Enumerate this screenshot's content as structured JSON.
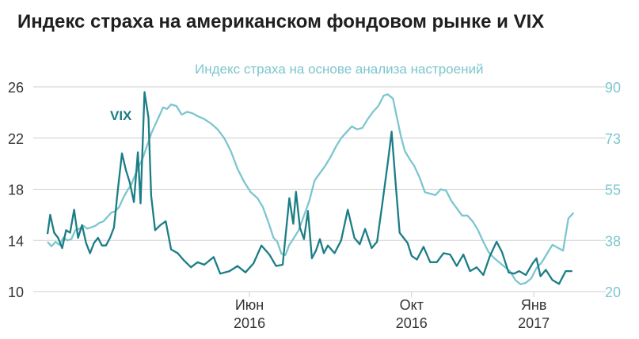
{
  "chart_data": {
    "type": "line",
    "title": "Индекс страха на американском фондовом рынке и VIX",
    "colors": {
      "vix": "#1b7d86",
      "sentiment": "#7cc6cf",
      "axis": "#cfcfcf",
      "text": "#333333"
    },
    "grid": true,
    "x_ticks": [
      {
        "line1": "Июн",
        "line2": "2016",
        "date": "2016-06-01"
      },
      {
        "line1": "Окт",
        "line2": "2016",
        "date": "2016-10-01"
      },
      {
        "line1": "Янв",
        "line2": "2017",
        "date": "2017-01-01"
      }
    ],
    "x_range": [
      "2016-01-01",
      "2017-02-14"
    ],
    "y_left": {
      "range": [
        10,
        26
      ],
      "ticks": [
        "10",
        "14",
        "18",
        "22",
        "26"
      ]
    },
    "y_right": {
      "range": [
        20,
        90
      ],
      "ticks": [
        "20",
        "38",
        "55",
        "73",
        "90"
      ]
    },
    "series": [
      {
        "name": "VIX",
        "axis": "left",
        "points": [
          [
            "2016-01-01",
            14.5
          ],
          [
            "2016-01-03",
            16.0
          ],
          [
            "2016-01-06",
            14.6
          ],
          [
            "2016-01-09",
            14.2
          ],
          [
            "2016-01-12",
            13.4
          ],
          [
            "2016-01-15",
            14.8
          ],
          [
            "2016-01-18",
            14.6
          ],
          [
            "2016-01-21",
            16.4
          ],
          [
            "2016-01-24",
            14.2
          ],
          [
            "2016-01-27",
            15.2
          ],
          [
            "2016-01-30",
            13.8
          ],
          [
            "2016-02-02",
            13.0
          ],
          [
            "2016-02-05",
            13.8
          ],
          [
            "2016-02-08",
            14.2
          ],
          [
            "2016-02-11",
            13.6
          ],
          [
            "2016-02-14",
            13.6
          ],
          [
            "2016-02-17",
            14.2
          ],
          [
            "2016-02-20",
            15.0
          ],
          [
            "2016-02-23",
            18.0
          ],
          [
            "2016-02-26",
            20.8
          ],
          [
            "2016-02-29",
            19.5
          ],
          [
            "2016-03-03",
            18.5
          ],
          [
            "2016-03-06",
            17.0
          ],
          [
            "2016-03-09",
            20.9
          ],
          [
            "2016-03-11",
            16.9
          ],
          [
            "2016-03-14",
            25.6
          ],
          [
            "2016-03-17",
            23.6
          ],
          [
            "2016-03-19",
            17.5
          ],
          [
            "2016-03-22",
            14.8
          ],
          [
            "2016-03-26",
            15.2
          ],
          [
            "2016-03-30",
            15.5
          ],
          [
            "2016-04-03",
            13.3
          ],
          [
            "2016-04-08",
            13.0
          ],
          [
            "2016-04-13",
            12.4
          ],
          [
            "2016-04-18",
            11.9
          ],
          [
            "2016-04-23",
            12.3
          ],
          [
            "2016-04-28",
            12.1
          ],
          [
            "2016-05-05",
            12.7
          ],
          [
            "2016-05-10",
            11.4
          ],
          [
            "2016-05-17",
            11.6
          ],
          [
            "2016-05-23",
            12.0
          ],
          [
            "2016-05-29",
            11.5
          ],
          [
            "2016-06-04",
            12.2
          ],
          [
            "2016-06-10",
            13.6
          ],
          [
            "2016-06-16",
            12.9
          ],
          [
            "2016-06-21",
            12.0
          ],
          [
            "2016-06-26",
            12.1
          ],
          [
            "2016-07-01",
            17.3
          ],
          [
            "2016-07-04",
            15.3
          ],
          [
            "2016-07-06",
            17.8
          ],
          [
            "2016-07-09",
            15.0
          ],
          [
            "2016-07-12",
            14.1
          ],
          [
            "2016-07-15",
            16.3
          ],
          [
            "2016-07-18",
            12.6
          ],
          [
            "2016-07-21",
            13.2
          ],
          [
            "2016-07-24",
            14.1
          ],
          [
            "2016-07-27",
            13.0
          ],
          [
            "2016-07-30",
            13.6
          ],
          [
            "2016-08-04",
            13.0
          ],
          [
            "2016-08-09",
            14.0
          ],
          [
            "2016-08-14",
            16.4
          ],
          [
            "2016-08-19",
            14.2
          ],
          [
            "2016-08-23",
            13.7
          ],
          [
            "2016-08-27",
            14.9
          ],
          [
            "2016-09-01",
            13.4
          ],
          [
            "2016-09-05",
            13.9
          ],
          [
            "2016-09-09",
            16.9
          ],
          [
            "2016-09-13",
            20.0
          ],
          [
            "2016-09-16",
            22.5
          ],
          [
            "2016-09-19",
            18.5
          ],
          [
            "2016-09-22",
            14.6
          ],
          [
            "2016-09-25",
            14.2
          ],
          [
            "2016-09-28",
            13.8
          ],
          [
            "2016-10-01",
            12.8
          ],
          [
            "2016-10-05",
            12.5
          ],
          [
            "2016-10-10",
            13.5
          ],
          [
            "2016-10-15",
            12.3
          ],
          [
            "2016-10-20",
            12.3
          ],
          [
            "2016-10-25",
            13.0
          ],
          [
            "2016-10-30",
            12.9
          ],
          [
            "2016-11-04",
            12.0
          ],
          [
            "2016-11-09",
            12.9
          ],
          [
            "2016-11-14",
            11.6
          ],
          [
            "2016-11-19",
            11.9
          ],
          [
            "2016-11-24",
            11.3
          ],
          [
            "2016-11-29",
            12.8
          ],
          [
            "2016-12-04",
            13.9
          ],
          [
            "2016-12-08",
            13.1
          ],
          [
            "2016-12-13",
            11.5
          ],
          [
            "2016-12-17",
            11.4
          ],
          [
            "2016-12-21",
            11.6
          ],
          [
            "2016-12-26",
            11.3
          ],
          [
            "2016-12-31",
            12.2
          ],
          [
            "2017-01-03",
            12.6
          ],
          [
            "2017-01-06",
            11.2
          ],
          [
            "2017-01-10",
            11.7
          ],
          [
            "2017-01-15",
            10.9
          ],
          [
            "2017-01-20",
            10.6
          ],
          [
            "2017-01-25",
            11.6
          ],
          [
            "2017-01-30",
            11.6
          ]
        ]
      },
      {
        "name": "Индекс страха на основе анализа настроений",
        "axis": "right",
        "points": [
          [
            "2016-01-01",
            37.0
          ],
          [
            "2016-01-04",
            35.5
          ],
          [
            "2016-01-07",
            37.0
          ],
          [
            "2016-01-10",
            36.0
          ],
          [
            "2016-01-13",
            38.5
          ],
          [
            "2016-01-16",
            37.5
          ],
          [
            "2016-01-19",
            38.0
          ],
          [
            "2016-01-22",
            41.0
          ],
          [
            "2016-01-25",
            41.5
          ],
          [
            "2016-01-28",
            42.5
          ],
          [
            "2016-01-31",
            41.5
          ],
          [
            "2016-02-03",
            42.0
          ],
          [
            "2016-02-06",
            42.5
          ],
          [
            "2016-02-09",
            43.5
          ],
          [
            "2016-02-12",
            44.0
          ],
          [
            "2016-02-15",
            45.5
          ],
          [
            "2016-02-18",
            47.0
          ],
          [
            "2016-02-21",
            47.5
          ],
          [
            "2016-02-24",
            49.0
          ],
          [
            "2016-02-27",
            52.0
          ],
          [
            "2016-03-01",
            54.5
          ],
          [
            "2016-03-04",
            56.5
          ],
          [
            "2016-03-07",
            60.0
          ],
          [
            "2016-03-10",
            63.0
          ],
          [
            "2016-03-13",
            66.0
          ],
          [
            "2016-03-16",
            70.0
          ],
          [
            "2016-03-19",
            74.0
          ],
          [
            "2016-03-22",
            77.0
          ],
          [
            "2016-03-25",
            80.0
          ],
          [
            "2016-03-28",
            83.0
          ],
          [
            "2016-03-31",
            82.5
          ],
          [
            "2016-04-03",
            84.0
          ],
          [
            "2016-04-07",
            83.5
          ],
          [
            "2016-04-11",
            80.5
          ],
          [
            "2016-04-15",
            81.5
          ],
          [
            "2016-04-19",
            81.0
          ],
          [
            "2016-04-23",
            80.0
          ],
          [
            "2016-04-28",
            79.0
          ],
          [
            "2016-05-03",
            77.5
          ],
          [
            "2016-05-08",
            75.5
          ],
          [
            "2016-05-13",
            72.5
          ],
          [
            "2016-05-18",
            68.0
          ],
          [
            "2016-05-23",
            62.0
          ],
          [
            "2016-05-28",
            57.5
          ],
          [
            "2016-06-02",
            54.0
          ],
          [
            "2016-06-07",
            52.0
          ],
          [
            "2016-06-11",
            49.0
          ],
          [
            "2016-06-15",
            44.0
          ],
          [
            "2016-06-19",
            38.5
          ],
          [
            "2016-06-22",
            37.0
          ],
          [
            "2016-06-25",
            33.0
          ],
          [
            "2016-06-28",
            32.5
          ],
          [
            "2016-07-01",
            36.0
          ],
          [
            "2016-07-04",
            38.0
          ],
          [
            "2016-07-08",
            41.0
          ],
          [
            "2016-07-12",
            46.0
          ],
          [
            "2016-07-16",
            51.0
          ],
          [
            "2016-07-20",
            58.0
          ],
          [
            "2016-07-24",
            60.5
          ],
          [
            "2016-07-28",
            63.0
          ],
          [
            "2016-08-01",
            66.0
          ],
          [
            "2016-08-05",
            69.5
          ],
          [
            "2016-08-09",
            72.5
          ],
          [
            "2016-08-13",
            74.5
          ],
          [
            "2016-08-17",
            76.5
          ],
          [
            "2016-08-21",
            75.5
          ],
          [
            "2016-08-25",
            76.0
          ],
          [
            "2016-08-29",
            79.0
          ],
          [
            "2016-09-02",
            81.5
          ],
          [
            "2016-09-06",
            83.5
          ],
          [
            "2016-09-10",
            87.0
          ],
          [
            "2016-09-13",
            87.5
          ],
          [
            "2016-09-17",
            86.0
          ],
          [
            "2016-09-20",
            79.5
          ],
          [
            "2016-09-23",
            73.0
          ],
          [
            "2016-09-26",
            68.0
          ],
          [
            "2016-09-30",
            65.0
          ],
          [
            "2016-10-03",
            63.0
          ],
          [
            "2016-10-07",
            59.0
          ],
          [
            "2016-10-11",
            54.0
          ],
          [
            "2016-10-15",
            53.5
          ],
          [
            "2016-10-19",
            53.0
          ],
          [
            "2016-10-23",
            55.0
          ],
          [
            "2016-10-27",
            54.5
          ],
          [
            "2016-10-31",
            51.0
          ],
          [
            "2016-11-04",
            48.5
          ],
          [
            "2016-11-08",
            46.0
          ],
          [
            "2016-11-12",
            46.0
          ],
          [
            "2016-11-16",
            44.0
          ],
          [
            "2016-11-20",
            41.0
          ],
          [
            "2016-11-24",
            37.0
          ],
          [
            "2016-11-28",
            33.5
          ],
          [
            "2016-12-02",
            31.5
          ],
          [
            "2016-12-06",
            30.0
          ],
          [
            "2016-12-10",
            28.5
          ],
          [
            "2016-12-14",
            27.0
          ],
          [
            "2016-12-18",
            24.0
          ],
          [
            "2016-12-22",
            22.5
          ],
          [
            "2016-12-26",
            23.0
          ],
          [
            "2016-12-30",
            24.5
          ],
          [
            "2017-01-03",
            28.0
          ],
          [
            "2017-01-07",
            30.0
          ],
          [
            "2017-01-11",
            33.0
          ],
          [
            "2017-01-15",
            36.0
          ],
          [
            "2017-01-19",
            35.0
          ],
          [
            "2017-01-23",
            34.0
          ],
          [
            "2017-01-27",
            45.0
          ],
          [
            "2017-01-31",
            47.0
          ]
        ]
      }
    ],
    "labels": {
      "vix": "VIX",
      "sentiment": "Индекс страха на основе анализа настроений"
    }
  }
}
